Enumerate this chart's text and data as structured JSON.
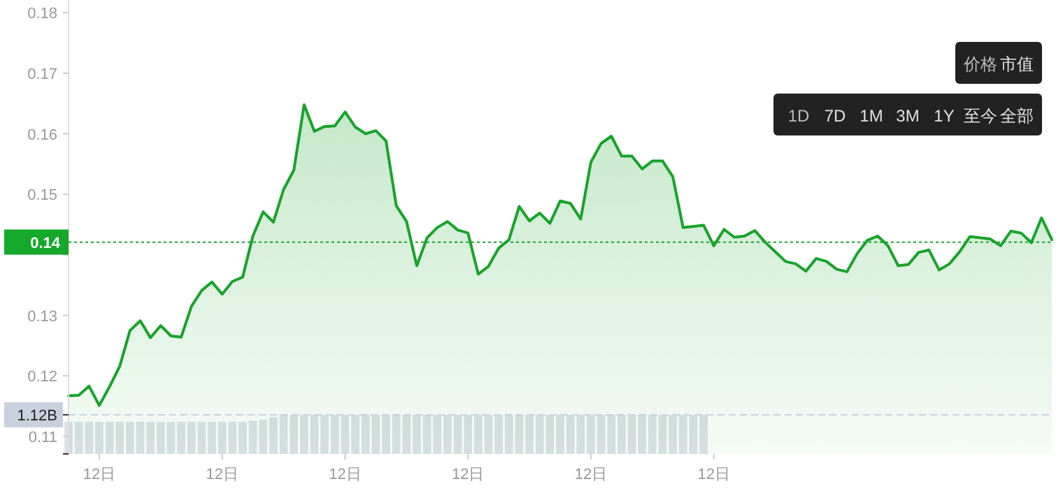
{
  "chart_data": {
    "type": "area",
    "categories": [
      null,
      null,
      null,
      "12日",
      null,
      null,
      null,
      null,
      null,
      null,
      null,
      null,
      null,
      null,
      null,
      "12日",
      null,
      null,
      null,
      null,
      null,
      null,
      null,
      null,
      null,
      null,
      null,
      "12日",
      null,
      null,
      null,
      null,
      null,
      null,
      null,
      null,
      null,
      null,
      null,
      "12日",
      null,
      null,
      null,
      null,
      null,
      null,
      null,
      null,
      null,
      null,
      null,
      "12日",
      null,
      null,
      null,
      null,
      null,
      null,
      null,
      null,
      null,
      null,
      null,
      "12日",
      null,
      null,
      null,
      null,
      null,
      null,
      null,
      null,
      null,
      null,
      null,
      null,
      null,
      null,
      null,
      null,
      null,
      null,
      null,
      null,
      null,
      null,
      null,
      null,
      null,
      null,
      null,
      null,
      null,
      null,
      null,
      null,
      null
    ],
    "ylim": [
      0.1071,
      0.1821
    ],
    "yticks": [
      0.11,
      0.12,
      0.13,
      {
        "value": 0.14,
        "label": null
      },
      0.15,
      0.16,
      0.17,
      0.18
    ],
    "y2lim": [
      0,
      13
    ],
    "y2ticks": [
      {
        "value": 0,
        "label": null
      },
      {
        "value": 1.12,
        "label": "1.12B"
      }
    ],
    "grid": false,
    "series": [
      {
        "type": "bar",
        "axis": "y2",
        "color": "#dde1e8",
        "values": [
          0.92,
          0.92,
          0.92,
          0.92,
          0.92,
          0.92,
          0.92,
          0.92,
          0.92,
          0.92,
          0.92,
          0.92,
          0.92,
          0.92,
          0.92,
          0.92,
          0.92,
          0.92,
          0.95,
          0.98,
          1.05,
          1.12,
          1.12,
          1.12,
          1.12,
          1.12,
          1.12,
          1.12,
          1.12,
          1.12,
          1.12,
          1.12,
          1.12,
          1.12,
          1.12,
          1.12,
          1.12,
          1.12,
          1.12,
          1.12,
          1.12,
          1.12,
          1.12,
          1.12,
          1.12,
          1.12,
          1.12,
          1.12,
          1.12,
          1.12,
          1.12,
          1.12,
          1.12,
          1.12,
          1.12,
          1.12,
          1.12,
          1.12,
          1.12,
          1.12,
          1.12,
          1.12,
          1.12,
          null,
          null,
          null,
          null,
          null,
          null,
          null,
          null,
          null,
          null,
          null,
          null,
          null,
          null,
          null,
          null,
          null,
          null,
          null,
          null,
          null,
          null,
          null,
          null,
          null,
          null,
          null,
          null,
          null,
          null,
          null,
          null,
          null,
          null
        ]
      },
      {
        "color": "#18a32b",
        "values": [
          0.1167,
          0.1168,
          0.1183,
          0.1151,
          0.1182,
          0.1216,
          0.1275,
          0.1291,
          0.1263,
          0.1283,
          0.1266,
          0.1264,
          0.1315,
          0.1341,
          0.1355,
          0.1335,
          0.1356,
          0.1363,
          0.1431,
          0.1471,
          0.1454,
          0.1508,
          0.154,
          0.1648,
          0.1604,
          0.1612,
          0.1613,
          0.1636,
          0.1611,
          0.16,
          0.1605,
          0.1588,
          0.1481,
          0.1455,
          0.1382,
          0.1428,
          0.1445,
          0.1455,
          0.1441,
          0.1436,
          0.1368,
          0.1381,
          0.1411,
          0.1425,
          0.148,
          0.1456,
          0.1469,
          0.1452,
          0.1489,
          0.1485,
          0.1459,
          0.1553,
          0.1584,
          0.1596,
          0.1563,
          0.1563,
          0.1542,
          0.1555,
          0.1555,
          0.1529,
          0.1445,
          0.1447,
          0.1449,
          0.1415,
          0.1442,
          0.1429,
          0.1431,
          0.144,
          0.1421,
          0.1405,
          0.1389,
          0.1385,
          0.1373,
          0.1394,
          0.1389,
          0.1376,
          0.1372,
          0.1402,
          0.1424,
          0.1431,
          0.1415,
          0.1382,
          0.1384,
          0.1404,
          0.1408,
          0.1375,
          0.1385,
          0.1405,
          0.143,
          0.1428,
          0.1426,
          0.1415,
          0.1439,
          0.1436,
          0.142,
          0.1461,
          0.1425
        ]
      }
    ],
    "ref_lines": [
      {
        "axis": "y",
        "value": 0.1421,
        "label": "0.14",
        "color": "#16a82a",
        "line_style": "dotted"
      },
      {
        "axis": "y2",
        "value": 1.12,
        "color": "#c9d1de",
        "line_style": "dashed"
      }
    ],
    "annotations": [
      "价格 市值",
      "1D 7D 1M 3M 1Y 至今 全部"
    ]
  }
}
